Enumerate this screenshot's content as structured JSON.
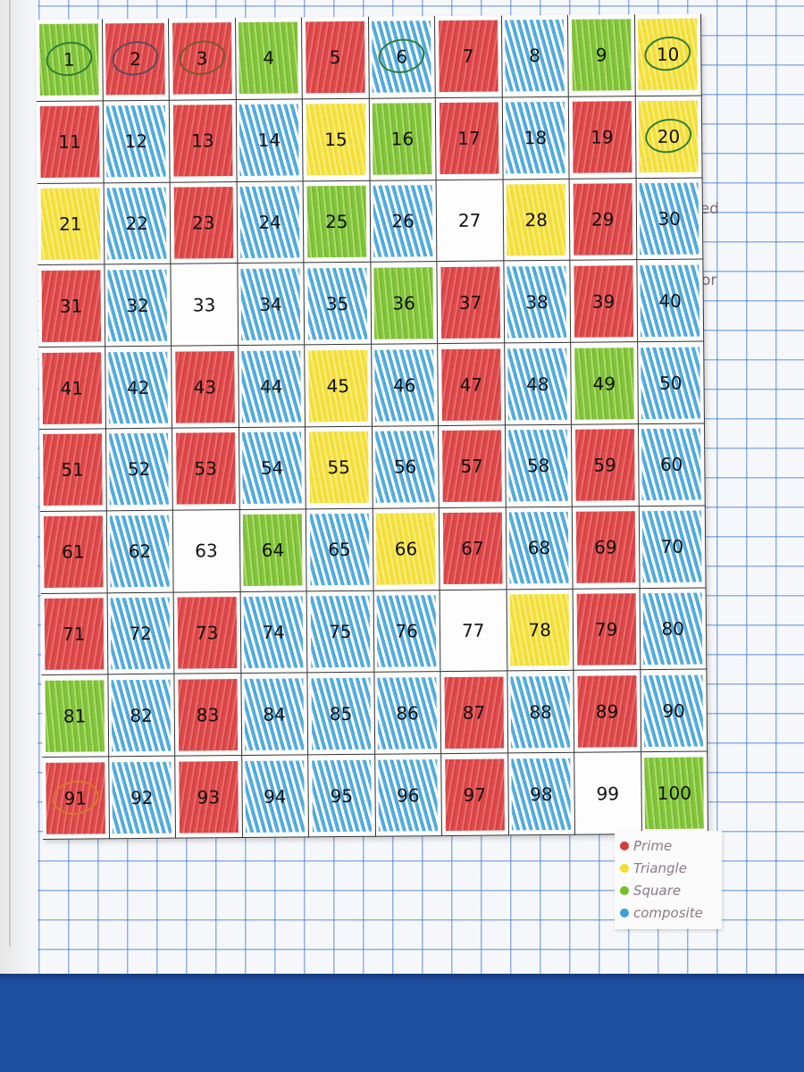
{
  "margin_notes": [
    "tiplied",
    "or"
  ],
  "colors": {
    "prime": "#d93a3a",
    "triangle": "#f2dd2c",
    "square": "#77bf2a",
    "composite": "#3d9fd8",
    "ring_green": "#2f7d38",
    "ring_purple": "#5a4a66",
    "ring_orange": "#d9782a"
  },
  "legend": [
    {
      "label": "Prime",
      "color": "#d93a3a"
    },
    {
      "label": "Triangle",
      "color": "#f2dd2c"
    },
    {
      "label": "Square",
      "color": "#77bf2a"
    },
    {
      "label": "composite",
      "color": "#3d9fd8"
    }
  ],
  "grid": {
    "cells": [
      {
        "n": "1",
        "c": "square",
        "ring": "#2f7d38"
      },
      {
        "n": "2",
        "c": "prime",
        "ring": "#5a4a66"
      },
      {
        "n": "3",
        "c": "prime",
        "ring": "#7a5a2a"
      },
      {
        "n": "4",
        "c": "square"
      },
      {
        "n": "5",
        "c": "prime"
      },
      {
        "n": "6",
        "c": "composite",
        "ring": "#2f7d38"
      },
      {
        "n": "7",
        "c": "prime"
      },
      {
        "n": "8",
        "c": "composite"
      },
      {
        "n": "9",
        "c": "square"
      },
      {
        "n": "10",
        "c": "triangle",
        "ring": "#2f7d38"
      },
      {
        "n": "11",
        "c": "prime"
      },
      {
        "n": "12",
        "c": "composite"
      },
      {
        "n": "13",
        "c": "prime"
      },
      {
        "n": "14",
        "c": "composite"
      },
      {
        "n": "15",
        "c": "triangle"
      },
      {
        "n": "16",
        "c": "square"
      },
      {
        "n": "17",
        "c": "prime"
      },
      {
        "n": "18",
        "c": "composite"
      },
      {
        "n": "19",
        "c": "prime"
      },
      {
        "n": "20",
        "c": "triangle",
        "ring": "#2f7d38"
      },
      {
        "n": "21",
        "c": "triangle"
      },
      {
        "n": "22",
        "c": "composite"
      },
      {
        "n": "23",
        "c": "prime"
      },
      {
        "n": "24",
        "c": "composite"
      },
      {
        "n": "25",
        "c": "square"
      },
      {
        "n": "26",
        "c": "composite"
      },
      {
        "n": "27",
        "c": "none"
      },
      {
        "n": "28",
        "c": "triangle"
      },
      {
        "n": "29",
        "c": "prime"
      },
      {
        "n": "30",
        "c": "composite"
      },
      {
        "n": "31",
        "c": "prime"
      },
      {
        "n": "32",
        "c": "composite"
      },
      {
        "n": "33",
        "c": "none"
      },
      {
        "n": "34",
        "c": "composite"
      },
      {
        "n": "35",
        "c": "composite"
      },
      {
        "n": "36",
        "c": "square"
      },
      {
        "n": "37",
        "c": "prime"
      },
      {
        "n": "38",
        "c": "composite"
      },
      {
        "n": "39",
        "c": "prime"
      },
      {
        "n": "40",
        "c": "composite"
      },
      {
        "n": "41",
        "c": "prime"
      },
      {
        "n": "42",
        "c": "composite"
      },
      {
        "n": "43",
        "c": "prime"
      },
      {
        "n": "44",
        "c": "composite"
      },
      {
        "n": "45",
        "c": "triangle"
      },
      {
        "n": "46",
        "c": "composite"
      },
      {
        "n": "47",
        "c": "prime"
      },
      {
        "n": "48",
        "c": "composite"
      },
      {
        "n": "49",
        "c": "square"
      },
      {
        "n": "50",
        "c": "composite"
      },
      {
        "n": "51",
        "c": "prime"
      },
      {
        "n": "52",
        "c": "composite"
      },
      {
        "n": "53",
        "c": "prime"
      },
      {
        "n": "54",
        "c": "composite"
      },
      {
        "n": "55",
        "c": "triangle"
      },
      {
        "n": "56",
        "c": "composite"
      },
      {
        "n": "57",
        "c": "prime"
      },
      {
        "n": "58",
        "c": "composite"
      },
      {
        "n": "59",
        "c": "prime"
      },
      {
        "n": "60",
        "c": "composite"
      },
      {
        "n": "61",
        "c": "prime"
      },
      {
        "n": "62",
        "c": "composite"
      },
      {
        "n": "63",
        "c": "none"
      },
      {
        "n": "64",
        "c": "square"
      },
      {
        "n": "65",
        "c": "composite"
      },
      {
        "n": "66",
        "c": "triangle"
      },
      {
        "n": "67",
        "c": "prime"
      },
      {
        "n": "68",
        "c": "composite"
      },
      {
        "n": "69",
        "c": "prime"
      },
      {
        "n": "70",
        "c": "composite"
      },
      {
        "n": "71",
        "c": "prime"
      },
      {
        "n": "72",
        "c": "composite"
      },
      {
        "n": "73",
        "c": "prime"
      },
      {
        "n": "74",
        "c": "composite"
      },
      {
        "n": "75",
        "c": "composite"
      },
      {
        "n": "76",
        "c": "composite"
      },
      {
        "n": "77",
        "c": "none"
      },
      {
        "n": "78",
        "c": "triangle"
      },
      {
        "n": "79",
        "c": "prime"
      },
      {
        "n": "80",
        "c": "composite"
      },
      {
        "n": "81",
        "c": "square"
      },
      {
        "n": "82",
        "c": "composite"
      },
      {
        "n": "83",
        "c": "prime"
      },
      {
        "n": "84",
        "c": "composite"
      },
      {
        "n": "85",
        "c": "composite"
      },
      {
        "n": "86",
        "c": "composite"
      },
      {
        "n": "87",
        "c": "prime"
      },
      {
        "n": "88",
        "c": "composite"
      },
      {
        "n": "89",
        "c": "prime"
      },
      {
        "n": "90",
        "c": "composite"
      },
      {
        "n": "91",
        "c": "prime",
        "ring": "#d9782a"
      },
      {
        "n": "92",
        "c": "composite"
      },
      {
        "n": "93",
        "c": "prime"
      },
      {
        "n": "94",
        "c": "composite"
      },
      {
        "n": "95",
        "c": "composite"
      },
      {
        "n": "96",
        "c": "composite"
      },
      {
        "n": "97",
        "c": "prime"
      },
      {
        "n": "98",
        "c": "composite"
      },
      {
        "n": "99",
        "c": "none"
      },
      {
        "n": "100",
        "c": "square"
      }
    ]
  }
}
